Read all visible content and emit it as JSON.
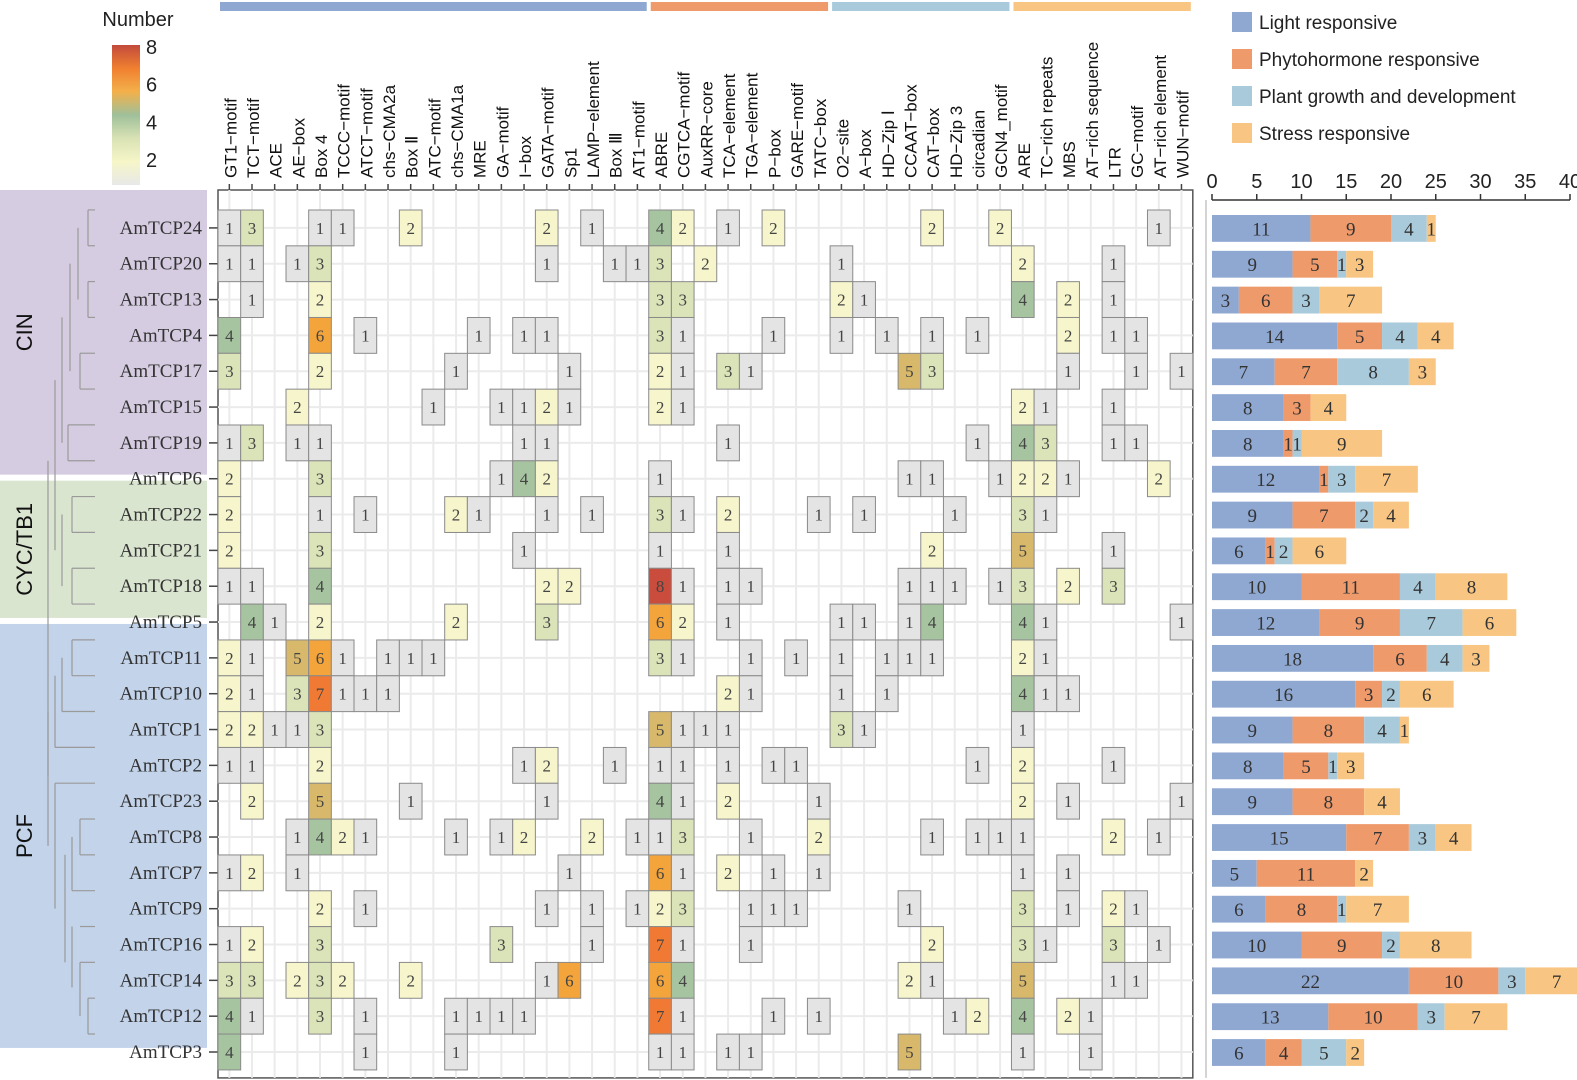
{
  "chart_data": [
    {
      "type": "heatmap",
      "title": "",
      "colorbar": {
        "title": "Number",
        "ticks": [
          2,
          4,
          6,
          8
        ],
        "range": [
          1,
          8
        ],
        "colors": [
          "#e8e8e8",
          "#f6f6c8",
          "#d9e2b4",
          "#9fc09a",
          "#f3b04a",
          "#f08030",
          "#c24a3c"
        ]
      },
      "category_groups": [
        {
          "name": "Light responsive",
          "color": "#8fa8d2",
          "start": 0,
          "end": 18
        },
        {
          "name": "Phytohormone responsive",
          "color": "#ef9a6b",
          "start": 19,
          "end": 26
        },
        {
          "name": "Plant growth and development",
          "color": "#a9cadb",
          "start": 27,
          "end": 34
        },
        {
          "name": "Stress responsive",
          "color": "#f8c682",
          "start": 35,
          "end": 42
        }
      ],
      "columns": [
        "GT1−motif",
        "TCT−motif",
        "ACE",
        "AE−box",
        "Box 4",
        "TCCC−motif",
        "ATCT−motif",
        "chs−CMA2a",
        "Box Ⅱ",
        "ATC−motif",
        "chs−CMA1a",
        "MRE",
        "GA−motif",
        "I−box",
        "GATA−motif",
        "Sp1",
        "LAMP−element",
        "Box Ⅲ",
        "AT1−motif",
        "ABRE",
        "CGTCA−motif",
        "AuxRR−core",
        "TCA−element",
        "TGA−element",
        "P−box",
        "GARE−motif",
        "TATC−box",
        "O2−site",
        "A−box",
        "HD−Zip Ⅰ",
        "CCAAT−box",
        "CAT−box",
        "HD−Zip 3",
        "circadian",
        "GCN4_motif",
        "ARE",
        "TC−rich repeats",
        "MBS",
        "AT−rich sequence",
        "LTR",
        "GC−motif",
        "AT−rich element",
        "WUN−motif"
      ],
      "rows": [
        "AmTCP24",
        "AmTCP20",
        "AmTCP13",
        "AmTCP4",
        "AmTCP17",
        "AmTCP15",
        "AmTCP19",
        "AmTCP6",
        "AmTCP22",
        "AmTCP21",
        "AmTCP18",
        "AmTCP5",
        "AmTCP11",
        "AmTCP10",
        "AmTCP1",
        "AmTCP2",
        "AmTCP23",
        "AmTCP8",
        "AmTCP7",
        "AmTCP9",
        "AmTCP16",
        "AmTCP14",
        "AmTCP12",
        "AmTCP3"
      ],
      "subfamilies": [
        {
          "name": "CIN",
          "color": "#cfc3dd",
          "first_row": 0,
          "last_row": 7
        },
        {
          "name": "CYC/TB1",
          "color": "#d3e0c8",
          "first_row": 8,
          "last_row": 11
        },
        {
          "name": "PCF",
          "color": "#b8cbe6",
          "first_row": 12,
          "last_row": 23
        }
      ],
      "values": [
        [
          1,
          3,
          0,
          0,
          1,
          1,
          0,
          0,
          2,
          0,
          0,
          0,
          0,
          0,
          2,
          0,
          1,
          0,
          0,
          4,
          2,
          0,
          1,
          0,
          2,
          0,
          0,
          0,
          0,
          0,
          0,
          2,
          0,
          0,
          2,
          0,
          0,
          0,
          0,
          0,
          0,
          1,
          0
        ],
        [
          1,
          1,
          0,
          1,
          3,
          0,
          0,
          0,
          0,
          0,
          0,
          0,
          0,
          0,
          1,
          0,
          0,
          1,
          1,
          3,
          0,
          2,
          0,
          0,
          0,
          0,
          0,
          1,
          0,
          0,
          0,
          0,
          0,
          0,
          0,
          2,
          0,
          0,
          0,
          1,
          0,
          0,
          0
        ],
        [
          0,
          1,
          0,
          0,
          2,
          0,
          0,
          0,
          0,
          0,
          0,
          0,
          0,
          0,
          0,
          0,
          0,
          0,
          0,
          3,
          3,
          0,
          0,
          0,
          0,
          0,
          0,
          2,
          1,
          0,
          0,
          0,
          0,
          0,
          0,
          4,
          0,
          2,
          0,
          1,
          0,
          0,
          0
        ],
        [
          4,
          0,
          0,
          0,
          6,
          0,
          1,
          0,
          0,
          0,
          0,
          1,
          0,
          1,
          1,
          0,
          0,
          0,
          0,
          3,
          1,
          0,
          0,
          0,
          1,
          0,
          0,
          1,
          0,
          1,
          0,
          1,
          0,
          1,
          0,
          0,
          0,
          2,
          0,
          1,
          1,
          0,
          0
        ],
        [
          3,
          0,
          0,
          0,
          2,
          0,
          0,
          0,
          0,
          0,
          1,
          0,
          0,
          0,
          0,
          1,
          0,
          0,
          0,
          2,
          1,
          0,
          3,
          1,
          0,
          0,
          0,
          0,
          0,
          0,
          5,
          3,
          0,
          0,
          0,
          0,
          0,
          1,
          0,
          0,
          1,
          0,
          1
        ],
        [
          0,
          0,
          0,
          2,
          0,
          0,
          0,
          0,
          0,
          1,
          0,
          0,
          1,
          1,
          2,
          1,
          0,
          0,
          0,
          2,
          1,
          0,
          0,
          0,
          0,
          0,
          0,
          0,
          0,
          0,
          0,
          0,
          0,
          0,
          0,
          2,
          1,
          0,
          0,
          1,
          0,
          0,
          0
        ],
        [
          1,
          3,
          0,
          1,
          1,
          0,
          0,
          0,
          0,
          0,
          0,
          0,
          0,
          1,
          1,
          0,
          0,
          0,
          0,
          0,
          0,
          0,
          1,
          0,
          0,
          0,
          0,
          0,
          0,
          0,
          0,
          0,
          0,
          1,
          0,
          4,
          3,
          0,
          0,
          1,
          1,
          0,
          0
        ],
        [
          2,
          0,
          0,
          0,
          3,
          0,
          0,
          0,
          0,
          0,
          0,
          0,
          1,
          4,
          2,
          0,
          0,
          0,
          0,
          1,
          0,
          0,
          0,
          0,
          0,
          0,
          0,
          0,
          0,
          0,
          1,
          1,
          0,
          0,
          1,
          2,
          2,
          1,
          0,
          0,
          0,
          2,
          0
        ],
        [
          2,
          0,
          0,
          0,
          1,
          0,
          1,
          0,
          0,
          0,
          2,
          1,
          0,
          0,
          1,
          0,
          1,
          0,
          0,
          3,
          1,
          0,
          2,
          0,
          0,
          0,
          1,
          0,
          1,
          0,
          0,
          0,
          1,
          0,
          0,
          3,
          1,
          0,
          0,
          0,
          0,
          0,
          0
        ],
        [
          2,
          0,
          0,
          0,
          3,
          0,
          0,
          0,
          0,
          0,
          0,
          0,
          0,
          1,
          0,
          0,
          0,
          0,
          0,
          1,
          0,
          0,
          1,
          0,
          0,
          0,
          0,
          0,
          0,
          0,
          0,
          2,
          0,
          0,
          0,
          5,
          0,
          0,
          0,
          1,
          0,
          0,
          0
        ],
        [
          1,
          1,
          0,
          0,
          4,
          0,
          0,
          0,
          0,
          0,
          0,
          0,
          0,
          0,
          2,
          2,
          0,
          0,
          0,
          8,
          1,
          0,
          1,
          1,
          0,
          0,
          0,
          0,
          0,
          0,
          1,
          1,
          1,
          0,
          1,
          3,
          0,
          2,
          0,
          3,
          0,
          0,
          0
        ],
        [
          0,
          4,
          1,
          0,
          2,
          0,
          0,
          0,
          0,
          0,
          2,
          0,
          0,
          0,
          3,
          0,
          0,
          0,
          0,
          6,
          2,
          0,
          1,
          0,
          0,
          0,
          0,
          1,
          1,
          0,
          1,
          4,
          0,
          0,
          0,
          4,
          1,
          0,
          0,
          0,
          0,
          0,
          1
        ],
        [
          2,
          1,
          0,
          5,
          6,
          1,
          0,
          1,
          1,
          1,
          0,
          0,
          0,
          0,
          0,
          0,
          0,
          0,
          0,
          3,
          1,
          0,
          0,
          1,
          0,
          1,
          0,
          1,
          0,
          1,
          1,
          1,
          0,
          0,
          0,
          2,
          1,
          0,
          0,
          0,
          0,
          0,
          0
        ],
        [
          2,
          1,
          0,
          3,
          7,
          1,
          1,
          1,
          0,
          0,
          0,
          0,
          0,
          0,
          0,
          0,
          0,
          0,
          0,
          0,
          0,
          0,
          2,
          1,
          0,
          0,
          0,
          1,
          0,
          1,
          0,
          0,
          0,
          0,
          0,
          4,
          1,
          1,
          0,
          0,
          0,
          0,
          0
        ],
        [
          2,
          2,
          1,
          1,
          3,
          0,
          0,
          0,
          0,
          0,
          0,
          0,
          0,
          0,
          0,
          0,
          0,
          0,
          0,
          5,
          1,
          1,
          1,
          0,
          0,
          0,
          0,
          3,
          1,
          0,
          0,
          0,
          0,
          0,
          0,
          1,
          0,
          0,
          0,
          0,
          0,
          0,
          0
        ],
        [
          1,
          1,
          0,
          0,
          2,
          0,
          0,
          0,
          0,
          0,
          0,
          0,
          0,
          1,
          2,
          0,
          0,
          1,
          0,
          1,
          1,
          0,
          1,
          0,
          1,
          1,
          0,
          0,
          0,
          0,
          0,
          0,
          0,
          1,
          0,
          2,
          0,
          0,
          0,
          1,
          0,
          0,
          0
        ],
        [
          0,
          2,
          0,
          0,
          5,
          0,
          0,
          0,
          1,
          0,
          0,
          0,
          0,
          0,
          1,
          0,
          0,
          0,
          0,
          4,
          1,
          0,
          2,
          0,
          0,
          0,
          1,
          0,
          0,
          0,
          0,
          0,
          0,
          0,
          0,
          2,
          0,
          1,
          0,
          0,
          0,
          0,
          1
        ],
        [
          0,
          0,
          0,
          1,
          4,
          2,
          1,
          0,
          0,
          0,
          1,
          0,
          1,
          2,
          0,
          0,
          2,
          0,
          1,
          1,
          3,
          0,
          0,
          1,
          0,
          0,
          2,
          0,
          0,
          0,
          0,
          1,
          0,
          1,
          1,
          1,
          0,
          0,
          0,
          2,
          0,
          1,
          0
        ],
        [
          1,
          2,
          0,
          1,
          0,
          0,
          0,
          0,
          0,
          0,
          0,
          0,
          0,
          0,
          0,
          1,
          0,
          0,
          0,
          6,
          1,
          0,
          2,
          0,
          1,
          0,
          1,
          0,
          0,
          0,
          0,
          0,
          0,
          0,
          0,
          1,
          0,
          1,
          0,
          0,
          0,
          0,
          0
        ],
        [
          0,
          0,
          0,
          0,
          2,
          0,
          1,
          0,
          0,
          0,
          0,
          0,
          0,
          0,
          1,
          0,
          1,
          0,
          1,
          2,
          3,
          0,
          0,
          1,
          1,
          1,
          0,
          0,
          0,
          0,
          1,
          0,
          0,
          0,
          0,
          3,
          0,
          1,
          0,
          2,
          1,
          0,
          0
        ],
        [
          1,
          2,
          0,
          0,
          3,
          0,
          0,
          0,
          0,
          0,
          0,
          0,
          3,
          0,
          0,
          0,
          1,
          0,
          0,
          7,
          1,
          0,
          0,
          1,
          0,
          0,
          0,
          0,
          0,
          0,
          0,
          2,
          0,
          0,
          0,
          3,
          1,
          0,
          0,
          3,
          0,
          1,
          0
        ],
        [
          3,
          3,
          0,
          2,
          3,
          2,
          0,
          0,
          2,
          0,
          0,
          0,
          0,
          0,
          1,
          6,
          0,
          0,
          0,
          6,
          4,
          0,
          0,
          0,
          0,
          0,
          0,
          0,
          0,
          0,
          2,
          1,
          0,
          0,
          0,
          5,
          0,
          0,
          0,
          1,
          1,
          0,
          0
        ],
        [
          4,
          1,
          0,
          0,
          3,
          0,
          1,
          0,
          0,
          0,
          1,
          1,
          1,
          1,
          0,
          0,
          0,
          0,
          0,
          7,
          1,
          0,
          0,
          0,
          1,
          0,
          1,
          0,
          0,
          0,
          0,
          0,
          1,
          2,
          0,
          4,
          0,
          2,
          1,
          0,
          0,
          0,
          0
        ],
        [
          4,
          0,
          0,
          0,
          0,
          0,
          1,
          0,
          0,
          0,
          1,
          0,
          0,
          0,
          0,
          0,
          0,
          0,
          0,
          1,
          1,
          0,
          1,
          1,
          0,
          0,
          0,
          0,
          0,
          0,
          5,
          0,
          0,
          0,
          0,
          1,
          0,
          0,
          1,
          0,
          0,
          0,
          0
        ]
      ]
    },
    {
      "type": "bar",
      "orientation": "horizontal",
      "stacked": true,
      "title": "",
      "xlabel": "",
      "ylabel": "",
      "xlim": [
        0,
        40
      ],
      "xticks": [
        0,
        5,
        10,
        15,
        20,
        25,
        30,
        35,
        40
      ],
      "legend_position": "top-right",
      "categories": [
        "AmTCP24",
        "AmTCP20",
        "AmTCP13",
        "AmTCP4",
        "AmTCP17",
        "AmTCP15",
        "AmTCP19",
        "AmTCP6",
        "AmTCP22",
        "AmTCP21",
        "AmTCP18",
        "AmTCP5",
        "AmTCP11",
        "AmTCP10",
        "AmTCP1",
        "AmTCP2",
        "AmTCP23",
        "AmTCP8",
        "AmTCP7",
        "AmTCP9",
        "AmTCP16",
        "AmTCP14",
        "AmTCP12",
        "AmTCP3"
      ],
      "series": [
        {
          "name": "Light responsive",
          "color": "#8fa8d2",
          "values": [
            11,
            9,
            3,
            14,
            7,
            8,
            8,
            12,
            9,
            6,
            10,
            12,
            18,
            16,
            9,
            8,
            9,
            15,
            5,
            6,
            10,
            22,
            13,
            6
          ]
        },
        {
          "name": "Phytohormone responsive",
          "color": "#ef9a6b",
          "values": [
            9,
            5,
            6,
            5,
            7,
            3,
            1,
            1,
            7,
            1,
            11,
            9,
            6,
            3,
            8,
            5,
            8,
            7,
            11,
            8,
            9,
            10,
            10,
            4
          ]
        },
        {
          "name": "Plant growth and development",
          "color": "#a9cadb",
          "values": [
            4,
            1,
            3,
            4,
            8,
            0,
            1,
            3,
            2,
            2,
            4,
            7,
            4,
            2,
            4,
            1,
            0,
            3,
            0,
            1,
            2,
            3,
            3,
            5
          ]
        },
        {
          "name": "Stress responsive",
          "color": "#f8c682",
          "values": [
            1,
            3,
            7,
            4,
            3,
            4,
            9,
            7,
            4,
            6,
            8,
            6,
            3,
            6,
            1,
            3,
            4,
            4,
            2,
            7,
            8,
            7,
            7,
            2
          ]
        }
      ]
    }
  ]
}
